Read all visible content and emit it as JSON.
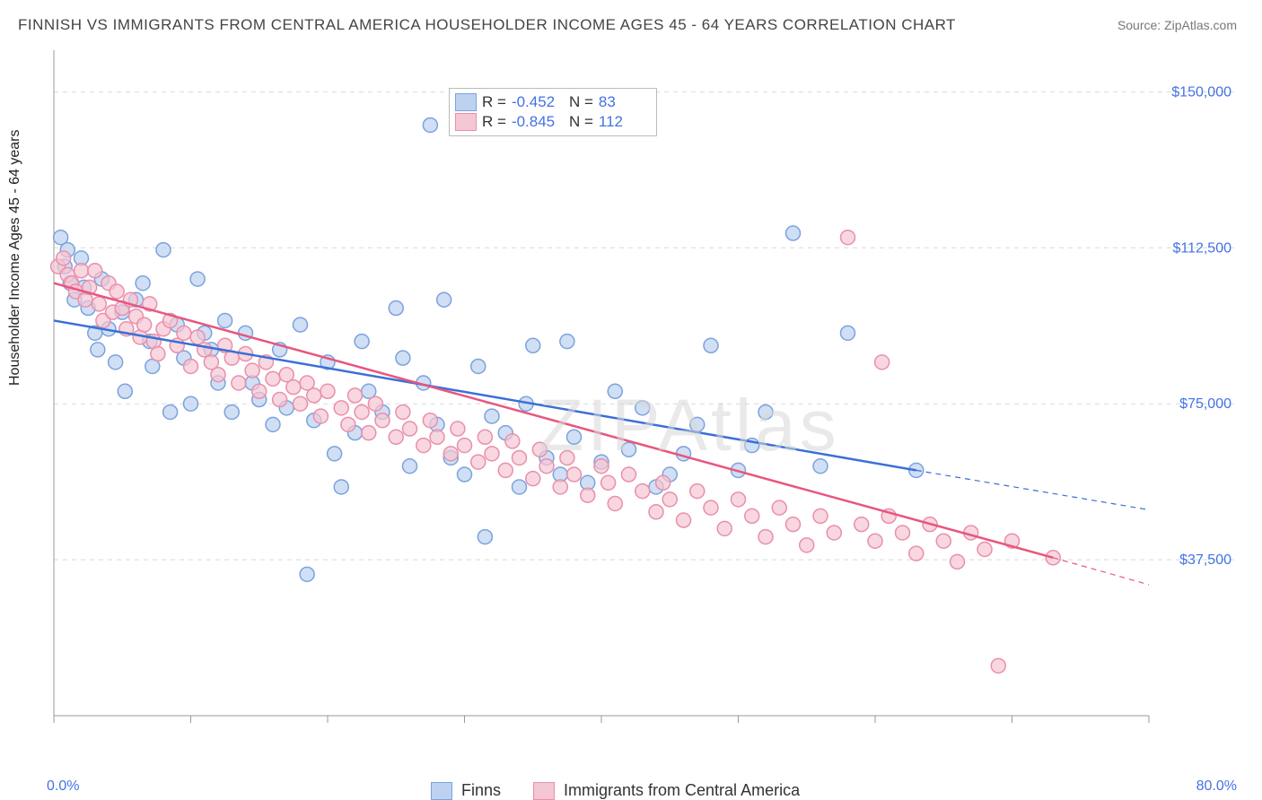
{
  "title": "FINNISH VS IMMIGRANTS FROM CENTRAL AMERICA HOUSEHOLDER INCOME AGES 45 - 64 YEARS CORRELATION CHART",
  "source": "Source: ZipAtlas.com",
  "watermark": "ZIPAtlas",
  "ylabel": "Householder Income Ages 45 - 64 years",
  "chart": {
    "type": "scatter",
    "background_color": "#ffffff",
    "grid_color": "#d9d9d9",
    "grid_dash": "5,5",
    "axis_color": "#999999",
    "text_color": "#444444",
    "tick_color": "#4472e4",
    "xlim": [
      0,
      80
    ],
    "ylim": [
      0,
      160000
    ],
    "xticks_major": [
      0,
      80
    ],
    "xticks_minor": [
      10,
      20,
      30,
      40,
      50,
      60,
      70
    ],
    "xtick_labels": {
      "0": "0.0%",
      "80": "80.0%"
    },
    "yticks": [
      37500,
      75000,
      112500,
      150000
    ],
    "ytick_labels": {
      "37500": "$37,500",
      "75000": "$75,000",
      "112500": "$112,500",
      "150000": "$150,000"
    },
    "marker_radius": 8,
    "marker_stroke_width": 1.5,
    "line_width": 2.5,
    "series": [
      {
        "name": "Finns",
        "label": "Finns",
        "fill": "#bcd2f0",
        "stroke": "#7ba2de",
        "line_color": "#3a6fd6",
        "R": "-0.452",
        "N": "83",
        "regression": {
          "x1": 0,
          "y1": 95000,
          "x2": 63,
          "y2": 59000,
          "ext_x2": 80,
          "ext_y2": 49500
        },
        "points": [
          [
            0.5,
            115000
          ],
          [
            0.8,
            108000
          ],
          [
            1,
            112000
          ],
          [
            1.2,
            104000
          ],
          [
            1.5,
            100000
          ],
          [
            2,
            110000
          ],
          [
            2.2,
            103000
          ],
          [
            2.5,
            98000
          ],
          [
            3,
            92000
          ],
          [
            3.2,
            88000
          ],
          [
            3.5,
            105000
          ],
          [
            4,
            93000
          ],
          [
            4.5,
            85000
          ],
          [
            5,
            97000
          ],
          [
            5.2,
            78000
          ],
          [
            6,
            100000
          ],
          [
            6.5,
            104000
          ],
          [
            7,
            90000
          ],
          [
            7.2,
            84000
          ],
          [
            8,
            112000
          ],
          [
            8.5,
            73000
          ],
          [
            9,
            94000
          ],
          [
            9.5,
            86000
          ],
          [
            10,
            75000
          ],
          [
            10.5,
            105000
          ],
          [
            11,
            92000
          ],
          [
            11.5,
            88000
          ],
          [
            12,
            80000
          ],
          [
            12.5,
            95000
          ],
          [
            13,
            73000
          ],
          [
            14,
            92000
          ],
          [
            14.5,
            80000
          ],
          [
            15,
            76000
          ],
          [
            16,
            70000
          ],
          [
            16.5,
            88000
          ],
          [
            17,
            74000
          ],
          [
            18,
            94000
          ],
          [
            18.5,
            34000
          ],
          [
            19,
            71000
          ],
          [
            20,
            85000
          ],
          [
            20.5,
            63000
          ],
          [
            21,
            55000
          ],
          [
            22,
            68000
          ],
          [
            22.5,
            90000
          ],
          [
            23,
            78000
          ],
          [
            24,
            73000
          ],
          [
            25,
            98000
          ],
          [
            25.5,
            86000
          ],
          [
            26,
            60000
          ],
          [
            27,
            80000
          ],
          [
            27.5,
            142000
          ],
          [
            28,
            70000
          ],
          [
            28.5,
            100000
          ],
          [
            29,
            62000
          ],
          [
            30,
            58000
          ],
          [
            31,
            84000
          ],
          [
            31.5,
            43000
          ],
          [
            32,
            72000
          ],
          [
            33,
            68000
          ],
          [
            34,
            55000
          ],
          [
            34.5,
            75000
          ],
          [
            35,
            89000
          ],
          [
            36,
            62000
          ],
          [
            37,
            58000
          ],
          [
            37.5,
            90000
          ],
          [
            38,
            67000
          ],
          [
            39,
            56000
          ],
          [
            40,
            61000
          ],
          [
            41,
            78000
          ],
          [
            42,
            64000
          ],
          [
            43,
            74000
          ],
          [
            44,
            55000
          ],
          [
            45,
            58000
          ],
          [
            46,
            63000
          ],
          [
            47,
            70000
          ],
          [
            48,
            89000
          ],
          [
            50,
            59000
          ],
          [
            51,
            65000
          ],
          [
            52,
            73000
          ],
          [
            54,
            116000
          ],
          [
            56,
            60000
          ],
          [
            58,
            92000
          ],
          [
            63,
            59000
          ]
        ]
      },
      {
        "name": "Immigrants from Central America",
        "label": "Immigrants from Central America",
        "fill": "#f5c6d3",
        "stroke": "#e98fab",
        "line_color": "#e8567e",
        "R": "-0.845",
        "N": "112",
        "regression": {
          "x1": 0,
          "y1": 104000,
          "x2": 73,
          "y2": 38000,
          "ext_x2": 80,
          "ext_y2": 31500
        },
        "points": [
          [
            0.3,
            108000
          ],
          [
            0.7,
            110000
          ],
          [
            1,
            106000
          ],
          [
            1.3,
            104000
          ],
          [
            1.6,
            102000
          ],
          [
            2,
            107000
          ],
          [
            2.3,
            100000
          ],
          [
            2.6,
            103000
          ],
          [
            3,
            107000
          ],
          [
            3.3,
            99000
          ],
          [
            3.6,
            95000
          ],
          [
            4,
            104000
          ],
          [
            4.3,
            97000
          ],
          [
            4.6,
            102000
          ],
          [
            5,
            98000
          ],
          [
            5.3,
            93000
          ],
          [
            5.6,
            100000
          ],
          [
            6,
            96000
          ],
          [
            6.3,
            91000
          ],
          [
            6.6,
            94000
          ],
          [
            7,
            99000
          ],
          [
            7.3,
            90000
          ],
          [
            7.6,
            87000
          ],
          [
            8,
            93000
          ],
          [
            8.5,
            95000
          ],
          [
            9,
            89000
          ],
          [
            9.5,
            92000
          ],
          [
            10,
            84000
          ],
          [
            10.5,
            91000
          ],
          [
            11,
            88000
          ],
          [
            11.5,
            85000
          ],
          [
            12,
            82000
          ],
          [
            12.5,
            89000
          ],
          [
            13,
            86000
          ],
          [
            13.5,
            80000
          ],
          [
            14,
            87000
          ],
          [
            14.5,
            83000
          ],
          [
            15,
            78000
          ],
          [
            15.5,
            85000
          ],
          [
            16,
            81000
          ],
          [
            16.5,
            76000
          ],
          [
            17,
            82000
          ],
          [
            17.5,
            79000
          ],
          [
            18,
            75000
          ],
          [
            18.5,
            80000
          ],
          [
            19,
            77000
          ],
          [
            19.5,
            72000
          ],
          [
            20,
            78000
          ],
          [
            21,
            74000
          ],
          [
            21.5,
            70000
          ],
          [
            22,
            77000
          ],
          [
            22.5,
            73000
          ],
          [
            23,
            68000
          ],
          [
            23.5,
            75000
          ],
          [
            24,
            71000
          ],
          [
            25,
            67000
          ],
          [
            25.5,
            73000
          ],
          [
            26,
            69000
          ],
          [
            27,
            65000
          ],
          [
            27.5,
            71000
          ],
          [
            28,
            67000
          ],
          [
            29,
            63000
          ],
          [
            29.5,
            69000
          ],
          [
            30,
            65000
          ],
          [
            31,
            61000
          ],
          [
            31.5,
            67000
          ],
          [
            32,
            63000
          ],
          [
            33,
            59000
          ],
          [
            33.5,
            66000
          ],
          [
            34,
            62000
          ],
          [
            35,
            57000
          ],
          [
            35.5,
            64000
          ],
          [
            36,
            60000
          ],
          [
            37,
            55000
          ],
          [
            37.5,
            62000
          ],
          [
            38,
            58000
          ],
          [
            39,
            53000
          ],
          [
            40,
            60000
          ],
          [
            40.5,
            56000
          ],
          [
            41,
            51000
          ],
          [
            42,
            58000
          ],
          [
            43,
            54000
          ],
          [
            44,
            49000
          ],
          [
            44.5,
            56000
          ],
          [
            45,
            52000
          ],
          [
            46,
            47000
          ],
          [
            47,
            54000
          ],
          [
            48,
            50000
          ],
          [
            49,
            45000
          ],
          [
            50,
            52000
          ],
          [
            51,
            48000
          ],
          [
            52,
            43000
          ],
          [
            53,
            50000
          ],
          [
            54,
            46000
          ],
          [
            55,
            41000
          ],
          [
            56,
            48000
          ],
          [
            57,
            44000
          ],
          [
            58,
            115000
          ],
          [
            59,
            46000
          ],
          [
            60,
            42000
          ],
          [
            60.5,
            85000
          ],
          [
            61,
            48000
          ],
          [
            62,
            44000
          ],
          [
            63,
            39000
          ],
          [
            64,
            46000
          ],
          [
            65,
            42000
          ],
          [
            66,
            37000
          ],
          [
            67,
            44000
          ],
          [
            68,
            40000
          ],
          [
            69,
            12000
          ],
          [
            70,
            42000
          ],
          [
            73,
            38000
          ]
        ]
      }
    ]
  }
}
